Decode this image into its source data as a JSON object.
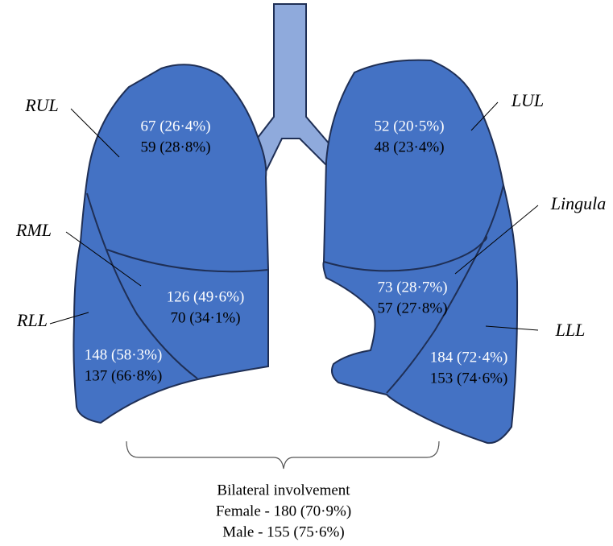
{
  "lobes": [
    {
      "label": "RUL",
      "female": "67 (26·4%)",
      "male": "59 (28·8%)"
    },
    {
      "label": "LUL",
      "female": "52 (20·5%)",
      "male": "48 (23·4%)"
    },
    {
      "label": "Lingula",
      "female": "73 (28·7%)",
      "male": "57 (27·8%)"
    },
    {
      "label": "RML",
      "female": "126 (49·6%)",
      "male": "70 (34·1%)"
    },
    {
      "label": "RLL",
      "female": "148 (58·3%)",
      "male": "137 (66·8%)"
    },
    {
      "label": "LLL",
      "female": "184 (72·4%)",
      "male": "153 (74·6%)"
    }
  ],
  "bilateral": {
    "title": "Bilateral involvement",
    "female": "Female - 180 (70·9%)",
    "male": "Male - 155 (75·6%)"
  }
}
